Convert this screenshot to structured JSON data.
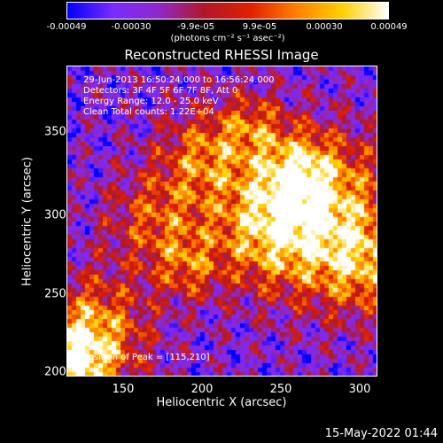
{
  "colorbar": {
    "ticks": [
      "-0.00049",
      "-0.00030",
      "-9.9e-05",
      "9.9e-05",
      "0.00030",
      "0.00049"
    ],
    "unit": "(photons cm⁻² s⁻¹ asec⁻²)"
  },
  "chart_data": {
    "type": "heatmap",
    "title": "Reconstructed RHESSI Image",
    "xlabel": "Heliocentric X (arcsec)",
    "ylabel": "Heliocentric Y (arcsec)",
    "xlim": [
      115,
      310
    ],
    "ylim": [
      200,
      395
    ],
    "x_ticks": [
      "150",
      "200",
      "250",
      "300"
    ],
    "y_ticks": [
      "200",
      "250",
      "300",
      "350"
    ],
    "value_range": [
      -0.00049,
      0.00049
    ],
    "annotations": [
      "29-Jun-2013 16:50:24.000 to 16:56:24.000",
      "Detectors: 3F 4F 5F 6F 7F 8F, Att 0",
      "Energy Range: 12.0 - 25.0 keV",
      "Clean     Total counts: 1.22E+04"
    ],
    "peak_label": "Position of Peak = [115,210]",
    "peak_position": [
      115,
      210
    ]
  },
  "footer": {
    "date": "15-May-2022 01:44"
  },
  "colors": {
    "colormap": [
      "#0000ff",
      "#7a2bff",
      "#8f28c8",
      "#b01828",
      "#e02000",
      "#ff8000",
      "#ffd000",
      "#ffffff"
    ]
  }
}
